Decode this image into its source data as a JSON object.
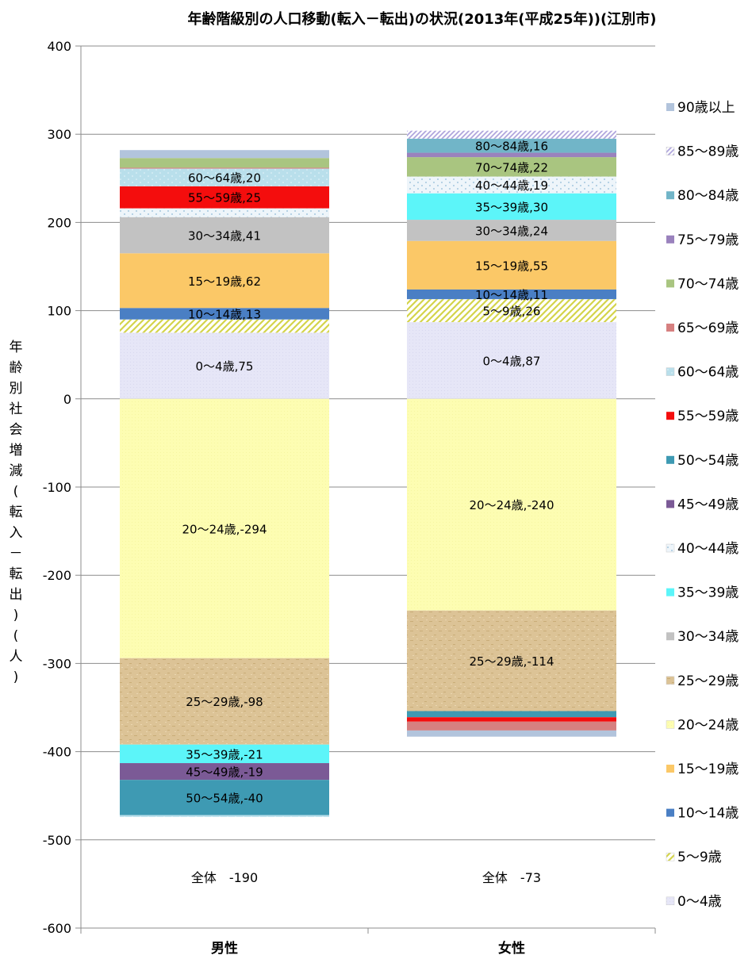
{
  "chart_data": {
    "type": "stacked-bar",
    "title": "年齢階級別の人口移動(転入－転出)の状況(2013年(平成25年))(江別市)",
    "ylabel": "年齢別社会増減(転入－転出)(人)",
    "ylim": [
      -600,
      400
    ],
    "yticks": [
      "400",
      "300",
      "200",
      "100",
      "0",
      "-100",
      "-200",
      "-300",
      "-400",
      "-500",
      "-600"
    ],
    "ytick_values": [
      400,
      300,
      200,
      100,
      0,
      -100,
      -200,
      -300,
      -400,
      -500,
      -600
    ],
    "grid": true,
    "legend_position": "right",
    "categories": [
      "男性",
      "女性"
    ],
    "totals": [
      "全体　-190",
      "全体　-73"
    ],
    "legend": [
      {
        "label": "90歳以上",
        "key": "a90"
      },
      {
        "label": "85～89歳",
        "key": "a85"
      },
      {
        "label": "80～84歳",
        "key": "a80"
      },
      {
        "label": "75～79歳",
        "key": "a75"
      },
      {
        "label": "70～74歳",
        "key": "a70"
      },
      {
        "label": "65～69歳",
        "key": "a65"
      },
      {
        "label": "60～64歳",
        "key": "a60"
      },
      {
        "label": "55～59歳",
        "key": "a55"
      },
      {
        "label": "50～54歳",
        "key": "a50"
      },
      {
        "label": "45～49歳",
        "key": "a45"
      },
      {
        "label": "40～44歳",
        "key": "a40"
      },
      {
        "label": "35～39歳",
        "key": "a35"
      },
      {
        "label": "30～34歳",
        "key": "a30"
      },
      {
        "label": "25～29歳",
        "key": "a25"
      },
      {
        "label": "20～24歳",
        "key": "a20"
      },
      {
        "label": "15～19歳",
        "key": "a15"
      },
      {
        "label": "10～14歳",
        "key": "a10"
      },
      {
        "label": "5～9歳",
        "key": "a05"
      },
      {
        "label": "0～4歳",
        "key": "a00"
      }
    ],
    "colors": {
      "a00": "#e4e4f6",
      "a05": "#e2e27a",
      "a10": "#4a7fc4",
      "a15": "#fbc867",
      "a20": "#fdfdb1",
      "a25": "#d8bf8d",
      "a30": "#c2c2c2",
      "a35": "#5cf5f9",
      "a40": "#daeaf3",
      "a45": "#7b5a96",
      "a50": "#3e9ab3",
      "a55": "#f40d0d",
      "a60": "#b8dcea",
      "a65": "#d68080",
      "a70": "#a9c580",
      "a75": "#9a82bd",
      "a80": "#71b5c8",
      "a85": "#c6bde6",
      "a90": "#b2c4dc"
    },
    "series": {
      "男性": [
        {
          "key": "a00",
          "value": 75,
          "label": "0～4歳,75"
        },
        {
          "key": "a05",
          "value": 15,
          "label": ""
        },
        {
          "key": "a10",
          "value": 13,
          "label": "10～14歳,13"
        },
        {
          "key": "a15",
          "value": 62,
          "label": "15～19歳,62"
        },
        {
          "key": "a30",
          "value": 41,
          "label": "30～34歳,41"
        },
        {
          "key": "a40",
          "value": 10,
          "label": ""
        },
        {
          "key": "a55",
          "value": 25,
          "label": "55～59歳,25"
        },
        {
          "key": "a60",
          "value": 20,
          "label": "60～64歳,20"
        },
        {
          "key": "a65",
          "value": 1,
          "label": ""
        },
        {
          "key": "a70",
          "value": 11,
          "label": ""
        },
        {
          "key": "a90",
          "value": 9,
          "label": ""
        },
        {
          "key": "a20",
          "value": -294,
          "label": "20～24歳,-294"
        },
        {
          "key": "a25",
          "value": -98,
          "label": "25～29歳,-98"
        },
        {
          "key": "a35",
          "value": -21,
          "label": "35～39歳,-21"
        },
        {
          "key": "a45",
          "value": -19,
          "label": "45～49歳,-19"
        },
        {
          "key": "a50",
          "value": -40,
          "label": "50～54歳,-40"
        },
        {
          "key": "a60",
          "value": -2,
          "label": ""
        }
      ],
      "女性": [
        {
          "key": "a00",
          "value": 87,
          "label": "0～4歳,87"
        },
        {
          "key": "a05",
          "value": 26,
          "label": "5～9歳,26"
        },
        {
          "key": "a10",
          "value": 11,
          "label": "10～14歳,11"
        },
        {
          "key": "a15",
          "value": 55,
          "label": "15～19歳,55"
        },
        {
          "key": "a30",
          "value": 24,
          "label": "30～34歳,24"
        },
        {
          "key": "a35",
          "value": 30,
          "label": "35～39歳,30"
        },
        {
          "key": "a40",
          "value": 19,
          "label": "40～44歳,19"
        },
        {
          "key": "a70",
          "value": 22,
          "label": "70～74歳,22"
        },
        {
          "key": "a75",
          "value": 5,
          "label": ""
        },
        {
          "key": "a80",
          "value": 16,
          "label": "80～84歳,16"
        },
        {
          "key": "a85",
          "value": 9,
          "label": ""
        },
        {
          "key": "a20",
          "value": -240,
          "label": "20～24歳,-240"
        },
        {
          "key": "a25",
          "value": -114,
          "label": "25～29歳,-114"
        },
        {
          "key": "a50",
          "value": -7,
          "label": ""
        },
        {
          "key": "a55",
          "value": -5,
          "label": ""
        },
        {
          "key": "a65",
          "value": -10,
          "label": ""
        },
        {
          "key": "a90",
          "value": -7,
          "label": ""
        }
      ]
    }
  }
}
